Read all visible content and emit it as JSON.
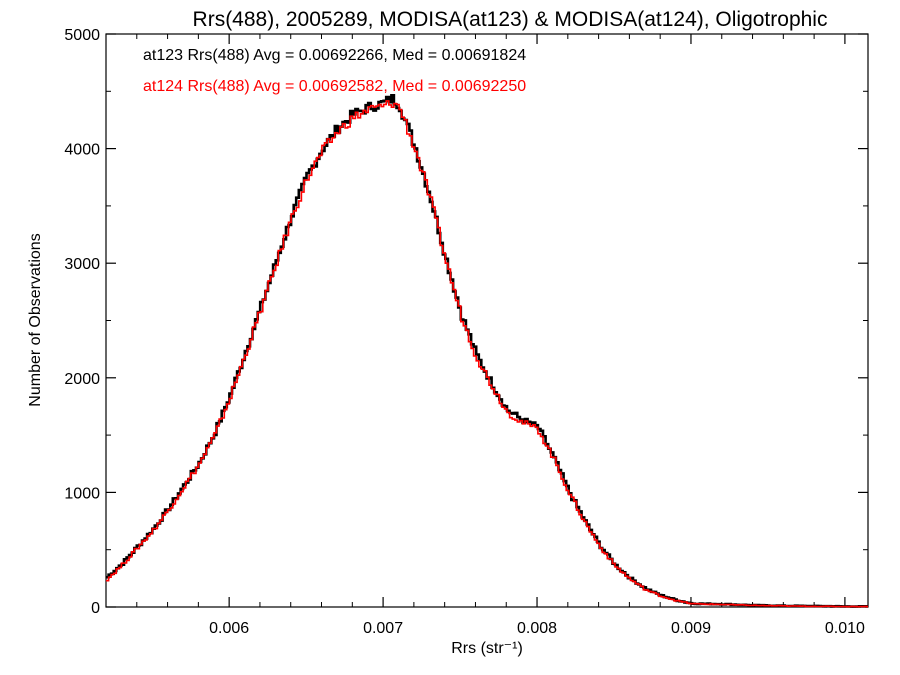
{
  "chart_data": {
    "type": "line",
    "title": "Rrs(488), 2005289, MODISA(at123) & MODISA(at124), Oligotrophic",
    "xlabel": "Rrs (str⁻¹)",
    "ylabel": "Number of Observations",
    "xlim": [
      0.0052,
      0.01015
    ],
    "ylim": [
      0,
      5000
    ],
    "x_ticks": [
      "0.006",
      "0.007",
      "0.008",
      "0.009",
      "0.010"
    ],
    "x_tick_values": [
      0.006,
      0.007,
      0.008,
      0.009,
      0.01
    ],
    "y_ticks": [
      "0",
      "1000",
      "2000",
      "3000",
      "4000",
      "5000"
    ],
    "y_tick_values": [
      0,
      1000,
      2000,
      3000,
      4000,
      5000
    ],
    "grid": false,
    "legend_position": "top-left",
    "series": [
      {
        "name": "at123",
        "color": "#000000",
        "annotation": "at123 Rrs(488) Avg = 0.00692266, Med = 0.00691824",
        "x": [
          0.0052,
          0.0053,
          0.0054,
          0.0055,
          0.0056,
          0.0057,
          0.0058,
          0.0059,
          0.006,
          0.0061,
          0.0062,
          0.0063,
          0.0064,
          0.0065,
          0.0066,
          0.0067,
          0.0068,
          0.0069,
          0.007,
          0.00705,
          0.0071,
          0.0072,
          0.0073,
          0.0074,
          0.0075,
          0.0076,
          0.0077,
          0.0078,
          0.0079,
          0.008,
          0.0081,
          0.0082,
          0.0083,
          0.0084,
          0.0085,
          0.0086,
          0.0087,
          0.0088,
          0.0089,
          0.009,
          0.0092,
          0.0094,
          0.0096,
          0.0098,
          0.01,
          0.01015
        ],
        "y": [
          260,
          380,
          530,
          680,
          860,
          1060,
          1260,
          1520,
          1850,
          2230,
          2620,
          3020,
          3420,
          3760,
          4000,
          4180,
          4300,
          4360,
          4400,
          4440,
          4380,
          4020,
          3580,
          3050,
          2560,
          2200,
          1950,
          1720,
          1630,
          1570,
          1310,
          1010,
          760,
          540,
          370,
          250,
          160,
          100,
          60,
          30,
          25,
          15,
          10,
          8,
          5,
          5
        ]
      },
      {
        "name": "at124",
        "color": "#ff0000",
        "annotation": "at124 Rrs(488) Avg = 0.00692582, Med = 0.00692250",
        "x": [
          0.0052,
          0.0053,
          0.0054,
          0.0055,
          0.0056,
          0.0057,
          0.0058,
          0.0059,
          0.006,
          0.0061,
          0.0062,
          0.0063,
          0.0064,
          0.0065,
          0.0066,
          0.0067,
          0.0068,
          0.0069,
          0.007,
          0.00705,
          0.0071,
          0.0072,
          0.0073,
          0.0074,
          0.0075,
          0.0076,
          0.0077,
          0.0078,
          0.0079,
          0.008,
          0.0081,
          0.0082,
          0.0083,
          0.0084,
          0.0085,
          0.0086,
          0.0087,
          0.0088,
          0.0089,
          0.009,
          0.0092,
          0.0094,
          0.0096,
          0.0098,
          0.01,
          0.01015
        ],
        "y": [
          240,
          370,
          520,
          670,
          850,
          1050,
          1250,
          1500,
          1830,
          2210,
          2600,
          3000,
          3400,
          3740,
          3980,
          4150,
          4270,
          4340,
          4370,
          4400,
          4360,
          4000,
          3560,
          3030,
          2540,
          2180,
          1930,
          1700,
          1610,
          1550,
          1300,
          1000,
          750,
          530,
          360,
          240,
          150,
          95,
          55,
          28,
          22,
          14,
          9,
          6,
          4,
          4
        ]
      }
    ]
  }
}
